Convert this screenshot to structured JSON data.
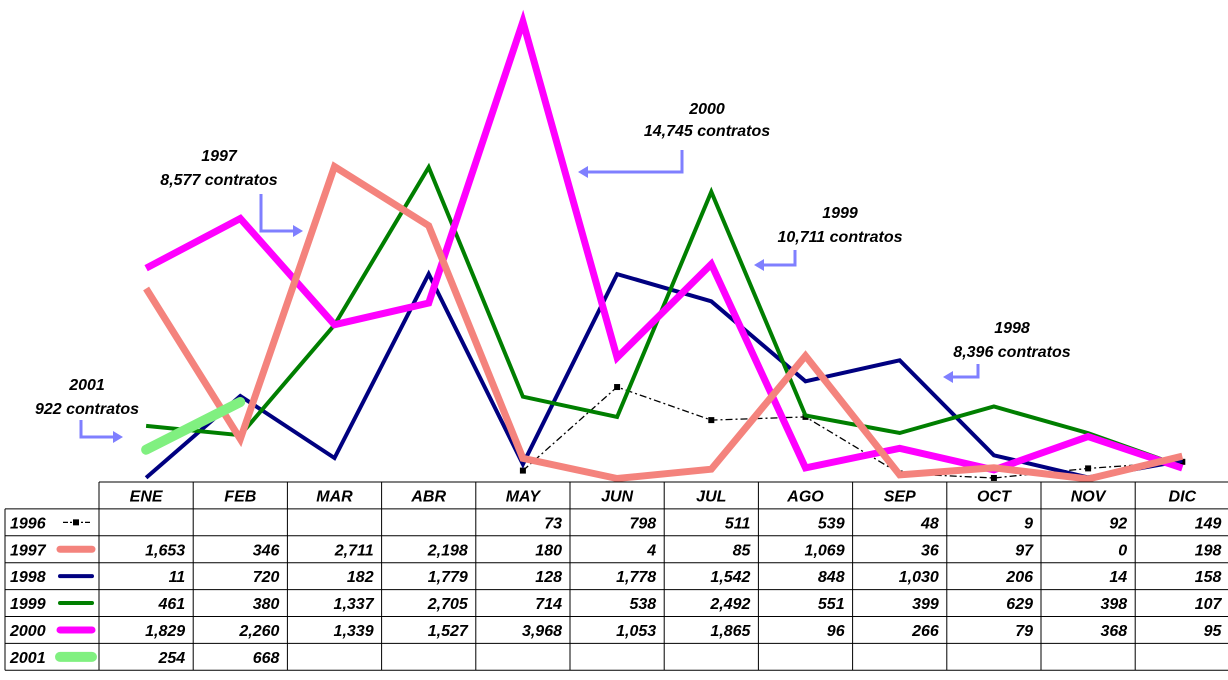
{
  "chart_data": {
    "type": "line",
    "title": "",
    "xlabel": "",
    "ylabel": "",
    "ylim": [
      0,
      4000
    ],
    "grid": false,
    "legend": "table-left",
    "categories": [
      "ENE",
      "FEB",
      "MAR",
      "ABR",
      "MAY",
      "JUN",
      "JUL",
      "AGO",
      "SEP",
      "OCT",
      "NOV",
      "DIC"
    ],
    "series": [
      {
        "name": "1996",
        "color": "#000000",
        "style": "dash-dot-markers",
        "values": [
          null,
          null,
          null,
          null,
          73,
          798,
          511,
          539,
          48,
          9,
          92,
          149
        ],
        "labels": [
          "",
          "",
          "",
          "",
          "73",
          "798",
          "511",
          "539",
          "48",
          "9",
          "92",
          "149"
        ]
      },
      {
        "name": "1997",
        "color": "#f4837d",
        "style": "thick",
        "values": [
          1653,
          346,
          2711,
          2198,
          180,
          4,
          85,
          1069,
          36,
          97,
          0,
          198
        ],
        "labels": [
          "1,653",
          "346",
          "2,711",
          "2,198",
          "180",
          "4",
          "85",
          "1,069",
          "36",
          "97",
          "0",
          "198"
        ]
      },
      {
        "name": "1998",
        "color": "#000080",
        "style": "medium",
        "values": [
          11,
          720,
          182,
          1779,
          128,
          1778,
          1542,
          848,
          1030,
          206,
          14,
          158
        ],
        "labels": [
          "11",
          "720",
          "182",
          "1,779",
          "128",
          "1,778",
          "1,542",
          "848",
          "1,030",
          "206",
          "14",
          "158"
        ]
      },
      {
        "name": "1999",
        "color": "#007f00",
        "style": "medium",
        "values": [
          461,
          380,
          1337,
          2705,
          714,
          538,
          2492,
          551,
          399,
          629,
          398,
          107
        ],
        "labels": [
          "461",
          "380",
          "1,337",
          "2,705",
          "714",
          "538",
          "2,492",
          "551",
          "399",
          "629",
          "398",
          "107"
        ]
      },
      {
        "name": "2000",
        "color": "#ff00ff",
        "style": "thick",
        "values": [
          1829,
          2260,
          1339,
          1527,
          3968,
          1053,
          1865,
          96,
          266,
          79,
          368,
          95
        ],
        "labels": [
          "1,829",
          "2,260",
          "1,339",
          "1,527",
          "3,968",
          "1,053",
          "1,865",
          "96",
          "266",
          "79",
          "368",
          "95"
        ]
      },
      {
        "name": "2001",
        "color": "#80f080",
        "style": "extra-thick",
        "values": [
          254,
          668,
          null,
          null,
          null,
          null,
          null,
          null,
          null,
          null,
          null,
          null
        ],
        "labels": [
          "254",
          "668",
          "",
          "",
          "",
          "",
          "",
          "",
          "",
          "",
          "",
          ""
        ]
      }
    ],
    "annotations": [
      {
        "year": "1997",
        "text": "8,577 contratos"
      },
      {
        "year": "2000",
        "text": "14,745 contratos"
      },
      {
        "year": "1999",
        "text": "10,711 contratos"
      },
      {
        "year": "1998",
        "text": "8,396 contratos"
      },
      {
        "year": "2001",
        "text": "922 contratos"
      }
    ],
    "annotation_arrow_color": "#7f7fff"
  }
}
